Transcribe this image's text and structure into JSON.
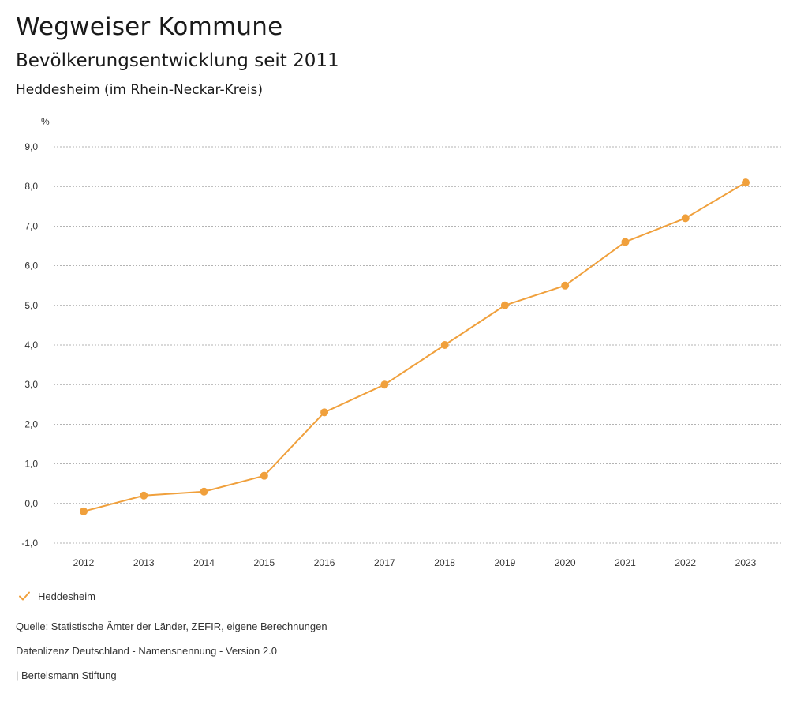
{
  "header": {
    "title": "Wegweiser Kommune",
    "subtitle": "Bevölkerungsentwicklung seit 2011",
    "region": "Heddesheim (im Rhein-Neckar-Kreis)"
  },
  "chart_data": {
    "type": "line",
    "title": "Bevölkerungsentwicklung seit 2011",
    "xlabel": "",
    "ylabel": "%",
    "categories": [
      "2012",
      "2013",
      "2014",
      "2015",
      "2016",
      "2017",
      "2018",
      "2019",
      "2020",
      "2021",
      "2022",
      "2023"
    ],
    "series": [
      {
        "name": "Heddesheim",
        "color": "#f0a03c",
        "values": [
          -0.2,
          0.2,
          0.3,
          0.7,
          2.3,
          3.0,
          4.0,
          5.0,
          5.5,
          6.6,
          7.2,
          8.1
        ]
      }
    ],
    "ylim": [
      -1.0,
      9.0
    ],
    "yticks": [
      -1.0,
      0.0,
      1.0,
      2.0,
      3.0,
      4.0,
      5.0,
      6.0,
      7.0,
      8.0,
      9.0
    ],
    "ytick_labels": [
      "-1,0",
      "0,0",
      "1,0",
      "2,0",
      "3,0",
      "4,0",
      "5,0",
      "6,0",
      "7,0",
      "8,0",
      "9,0"
    ],
    "grid": true,
    "legend": "bottom-left"
  },
  "legend": {
    "label": "Heddesheim",
    "icon": "check-icon"
  },
  "footer": {
    "source": "Quelle: Statistische Ämter der Länder, ZEFIR, eigene Berechnungen",
    "license": "Datenlizenz Deutschland - Namensnennung - Version 2.0",
    "publisher": "| Bertelsmann Stiftung"
  }
}
